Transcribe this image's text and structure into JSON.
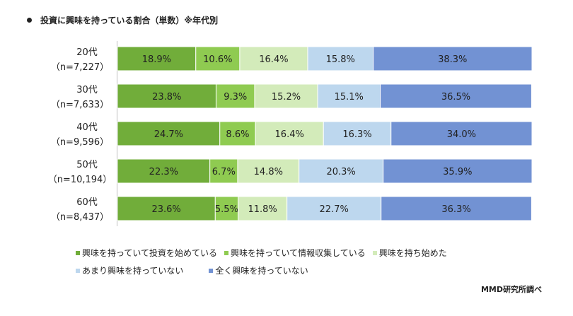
{
  "title": "投資に興味を持っている割合（単数）※年代別",
  "credit": "MMD研究所調べ",
  "chart_data": {
    "type": "bar",
    "orientation": "horizontal",
    "stacked": "100%",
    "categories": [
      {
        "label": "20代",
        "sub": "（n=7,227）"
      },
      {
        "label": "30代",
        "sub": "（n=7,633）"
      },
      {
        "label": "40代",
        "sub": "（n=9,596）"
      },
      {
        "label": "50代",
        "sub": "（n=10,194）"
      },
      {
        "label": "60代",
        "sub": "（n=8,437）"
      }
    ],
    "series": [
      {
        "name": "興味を持っていて投資を始めている",
        "color": "#71ad3a",
        "values": [
          18.9,
          23.8,
          24.7,
          22.3,
          23.6
        ]
      },
      {
        "name": "興味を持っていて情報収集している",
        "color": "#8fcb51",
        "values": [
          10.6,
          9.3,
          8.6,
          6.7,
          5.5
        ]
      },
      {
        "name": "興味を持ち始めた",
        "color": "#d3ebba",
        "values": [
          16.4,
          15.2,
          16.4,
          14.8,
          11.8
        ]
      },
      {
        "name": "あまり興味を持っていない",
        "color": "#bdd7ee",
        "values": [
          15.8,
          15.1,
          16.3,
          20.3,
          22.7
        ]
      },
      {
        "name": "全く興味を持っていない",
        "color": "#7292d3",
        "values": [
          38.3,
          36.5,
          34.0,
          35.9,
          36.3
        ]
      }
    ],
    "xlim": [
      0,
      100
    ],
    "value_suffix": "%",
    "grid": false,
    "legend": "bottom"
  }
}
